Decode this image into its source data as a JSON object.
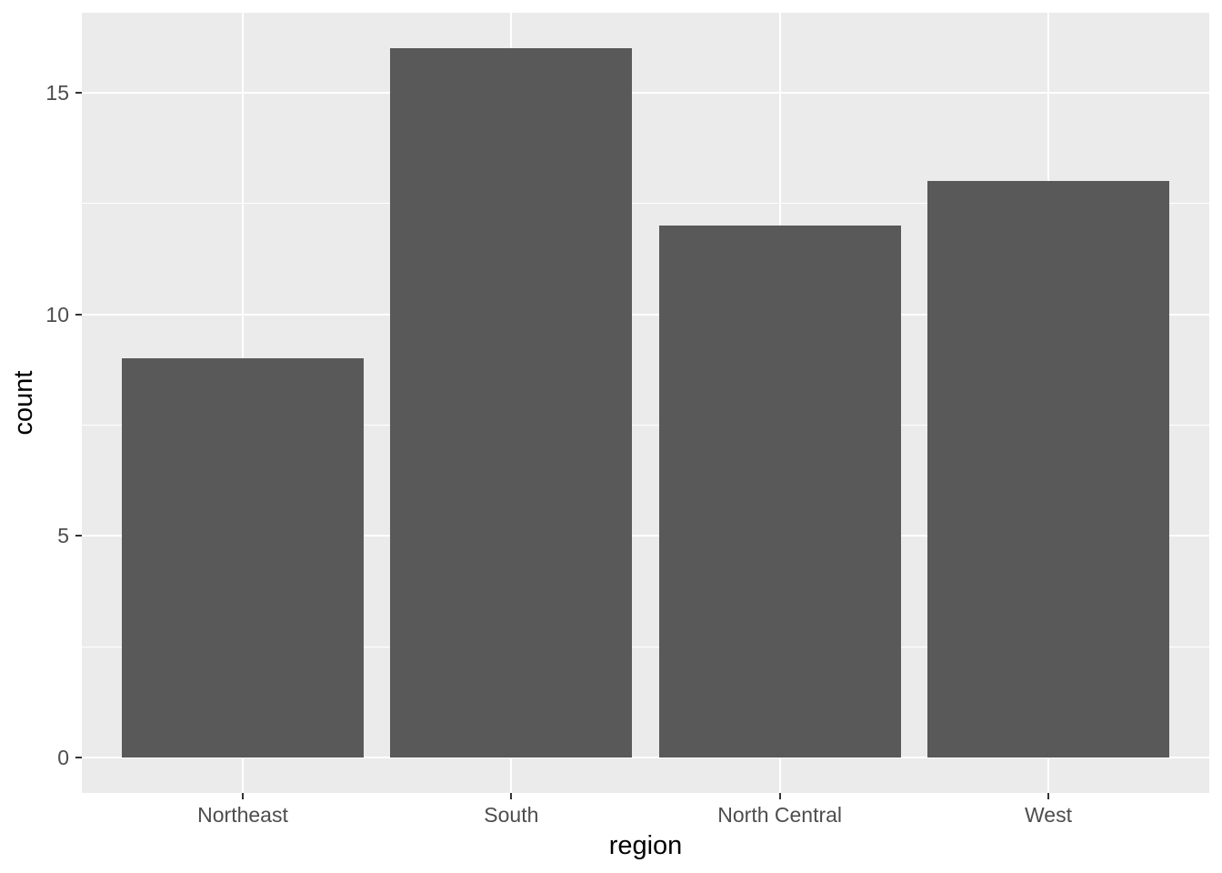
{
  "chart_data": {
    "type": "bar",
    "categories": [
      "Northeast",
      "South",
      "North Central",
      "West"
    ],
    "values": [
      9,
      16,
      12,
      13
    ],
    "title": "",
    "xlabel": "region",
    "ylabel": "count",
    "ylim": [
      -0.8,
      16.8
    ],
    "yticks": [
      0,
      5,
      10,
      15
    ],
    "ytick_labels": [
      "0",
      "5",
      "10",
      "15"
    ],
    "yminor": [
      2.5,
      7.5,
      12.5
    ],
    "grid": "on",
    "legend": "none",
    "style": "ggplot2-theme-grey",
    "colors": {
      "bar_fill": "#595959",
      "panel_background": "#EBEBEB",
      "gridline": "#FFFFFF",
      "tick_mark": "#333333",
      "tick_label": "#4D4D4D",
      "axis_title": "#000000",
      "page_background": "#FFFFFF"
    }
  }
}
